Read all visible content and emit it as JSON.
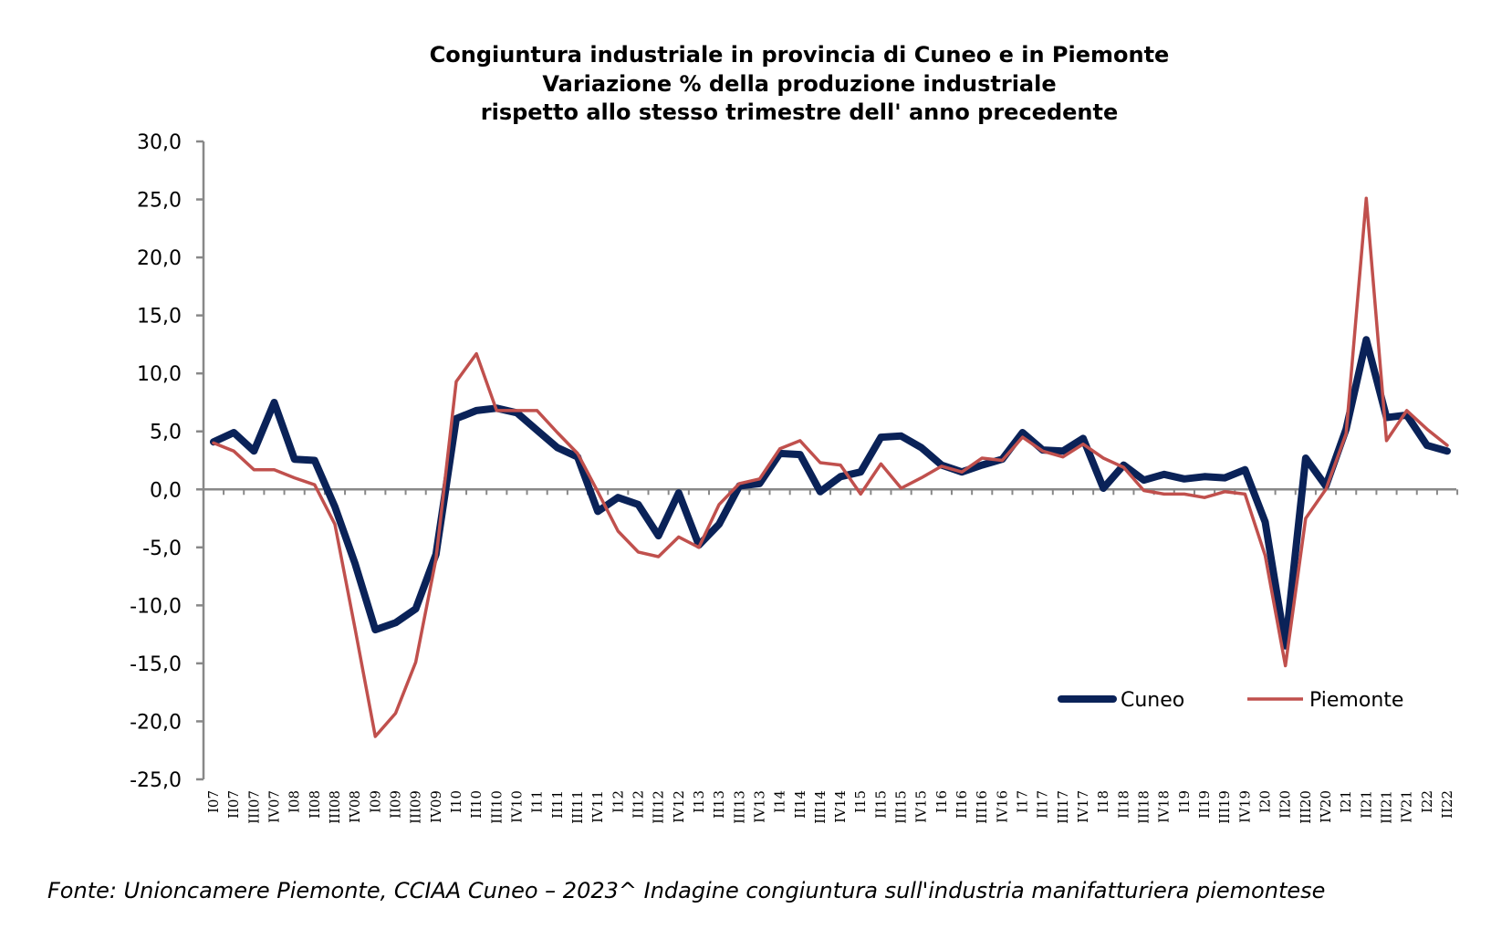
{
  "chart_data": {
    "type": "line",
    "title": [
      "Congiuntura industriale in provincia di Cuneo e in Piemonte",
      "Variazione % della produzione industriale",
      "rispetto allo stesso trimestre dell' anno precedente"
    ],
    "xlabel": "",
    "ylabel": "",
    "ylim": [
      -25,
      30
    ],
    "ystep": 5,
    "ytick_labels": [
      "30,0",
      "25,0",
      "20,0",
      "15,0",
      "10,0",
      "5,0",
      "0,0",
      "-5,0",
      "-10,0",
      "-15,0",
      "-20,0",
      "-25,0"
    ],
    "grid": false,
    "legend_position": "bottom-right",
    "categories": [
      "I07",
      "II07",
      "III07",
      "IV07",
      "I08",
      "II08",
      "III08",
      "IV08",
      "I09",
      "II09",
      "III09",
      "IV09",
      "I10",
      "II10",
      "III10",
      "IV10",
      "I11",
      "II11",
      "III11",
      "IV11",
      "I12",
      "II12",
      "III12",
      "IV12",
      "I13",
      "II13",
      "III13",
      "IV13",
      "I14",
      "II14",
      "III14",
      "IV14",
      "I15",
      "II15",
      "III15",
      "IV15",
      "I16",
      "II16",
      "III16",
      "IV16",
      "I17",
      "II17",
      "III17",
      "IV17",
      "I18",
      "II18",
      "III18",
      "IV18",
      "I19",
      "II19",
      "III19",
      "IV19",
      "I20",
      "II20",
      "III20",
      "IV20",
      "I21",
      "II21",
      "III21",
      "IV21",
      "I22",
      "II22"
    ],
    "series": [
      {
        "name": "Cuneo",
        "color": "#0a2258",
        "values": [
          4.1,
          4.9,
          3.3,
          7.5,
          2.6,
          2.5,
          -1.5,
          -6.4,
          -12.1,
          -11.5,
          -10.3,
          -5.6,
          6.1,
          6.8,
          7.0,
          6.6,
          5.1,
          3.6,
          2.8,
          -1.9,
          -0.7,
          -1.3,
          -4.0,
          -0.3,
          -4.8,
          -3.0,
          0.3,
          0.5,
          3.1,
          3.0,
          -0.2,
          1.1,
          1.5,
          4.5,
          4.6,
          3.6,
          2.1,
          1.5,
          2.1,
          2.6,
          4.9,
          3.4,
          3.3,
          4.4,
          0.1,
          2.1,
          0.8,
          1.3,
          0.9,
          1.1,
          1.0,
          1.7,
          -2.8,
          -13.5,
          2.7,
          0.3,
          5.2,
          12.9,
          6.2,
          6.4,
          3.8,
          3.3
        ]
      },
      {
        "name": "Piemonte",
        "color": "#c0504d",
        "values": [
          4.0,
          3.3,
          1.7,
          1.7,
          1.0,
          0.4,
          -3.0,
          -12.0,
          -21.3,
          -19.3,
          -14.9,
          -6.0,
          9.3,
          11.7,
          6.8,
          6.8,
          6.8,
          4.9,
          3.1,
          -0.2,
          -3.6,
          -5.4,
          -5.8,
          -4.1,
          -5.0,
          -1.3,
          0.5,
          0.9,
          3.5,
          4.2,
          2.3,
          2.1,
          -0.4,
          2.2,
          0.1,
          1.0,
          2.0,
          1.5,
          2.7,
          2.5,
          4.5,
          3.3,
          2.8,
          3.9,
          2.7,
          1.9,
          -0.1,
          -0.4,
          -0.4,
          -0.7,
          -0.2,
          -0.4,
          -5.7,
          -15.2,
          -2.5,
          0.0,
          4.8,
          25.1,
          4.2,
          6.8,
          5.2,
          3.8
        ]
      }
    ]
  },
  "footer": "Fonte: Unioncamere Piemonte, CCIAA Cuneo – 2023^ Indagine congiuntura sull'industria manifatturiera piemontese"
}
